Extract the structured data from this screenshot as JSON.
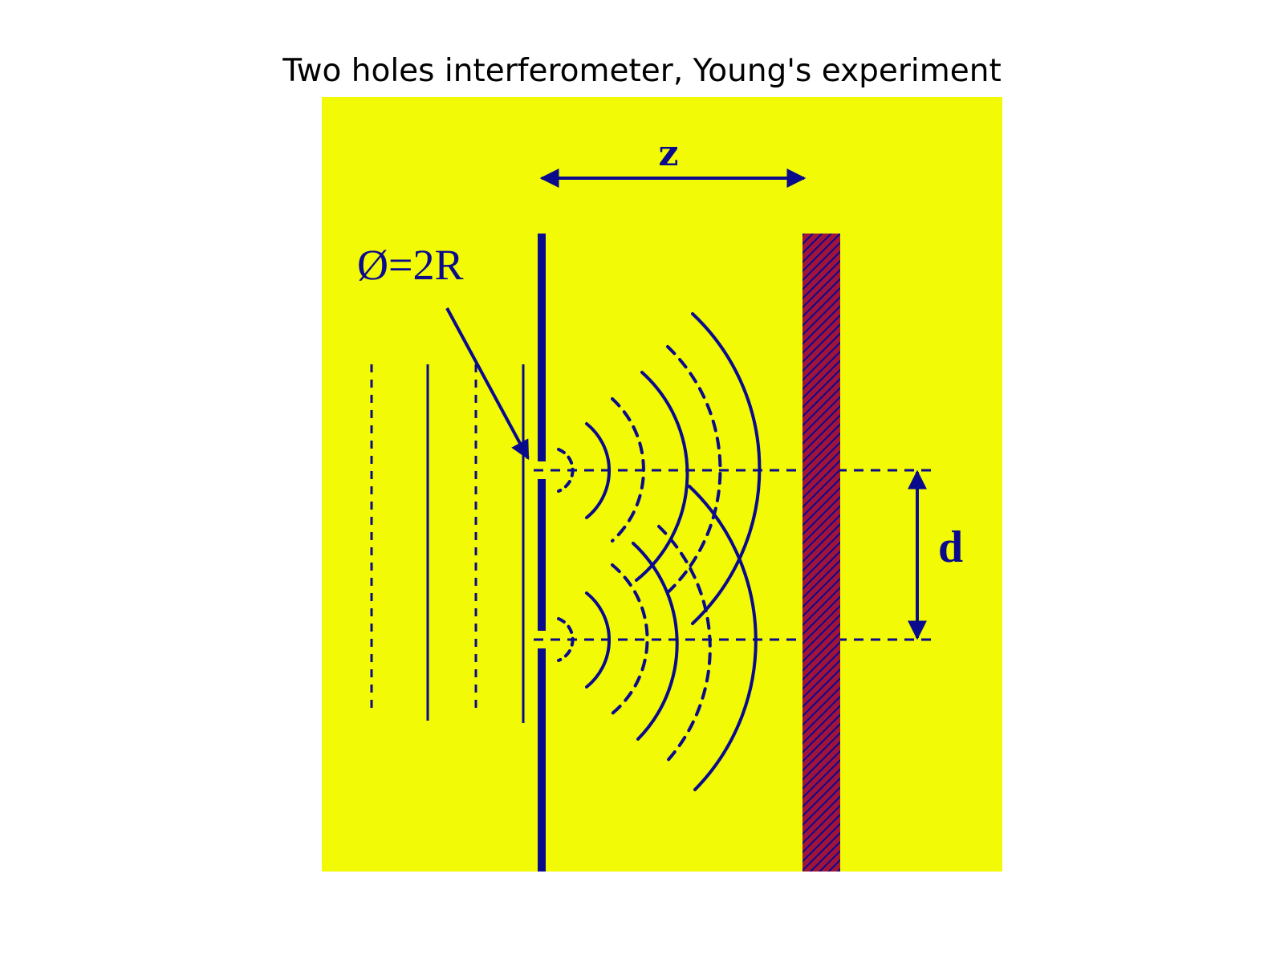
{
  "title": "Two holes interferometer, Young's experiment",
  "figure": {
    "background_color": "#F2FA05",
    "ink_color": "#0A0A8C",
    "hatch_color": "#A0143C",
    "labels": {
      "distance": "z",
      "aperture": "Ø=2R",
      "separation": "d"
    }
  }
}
